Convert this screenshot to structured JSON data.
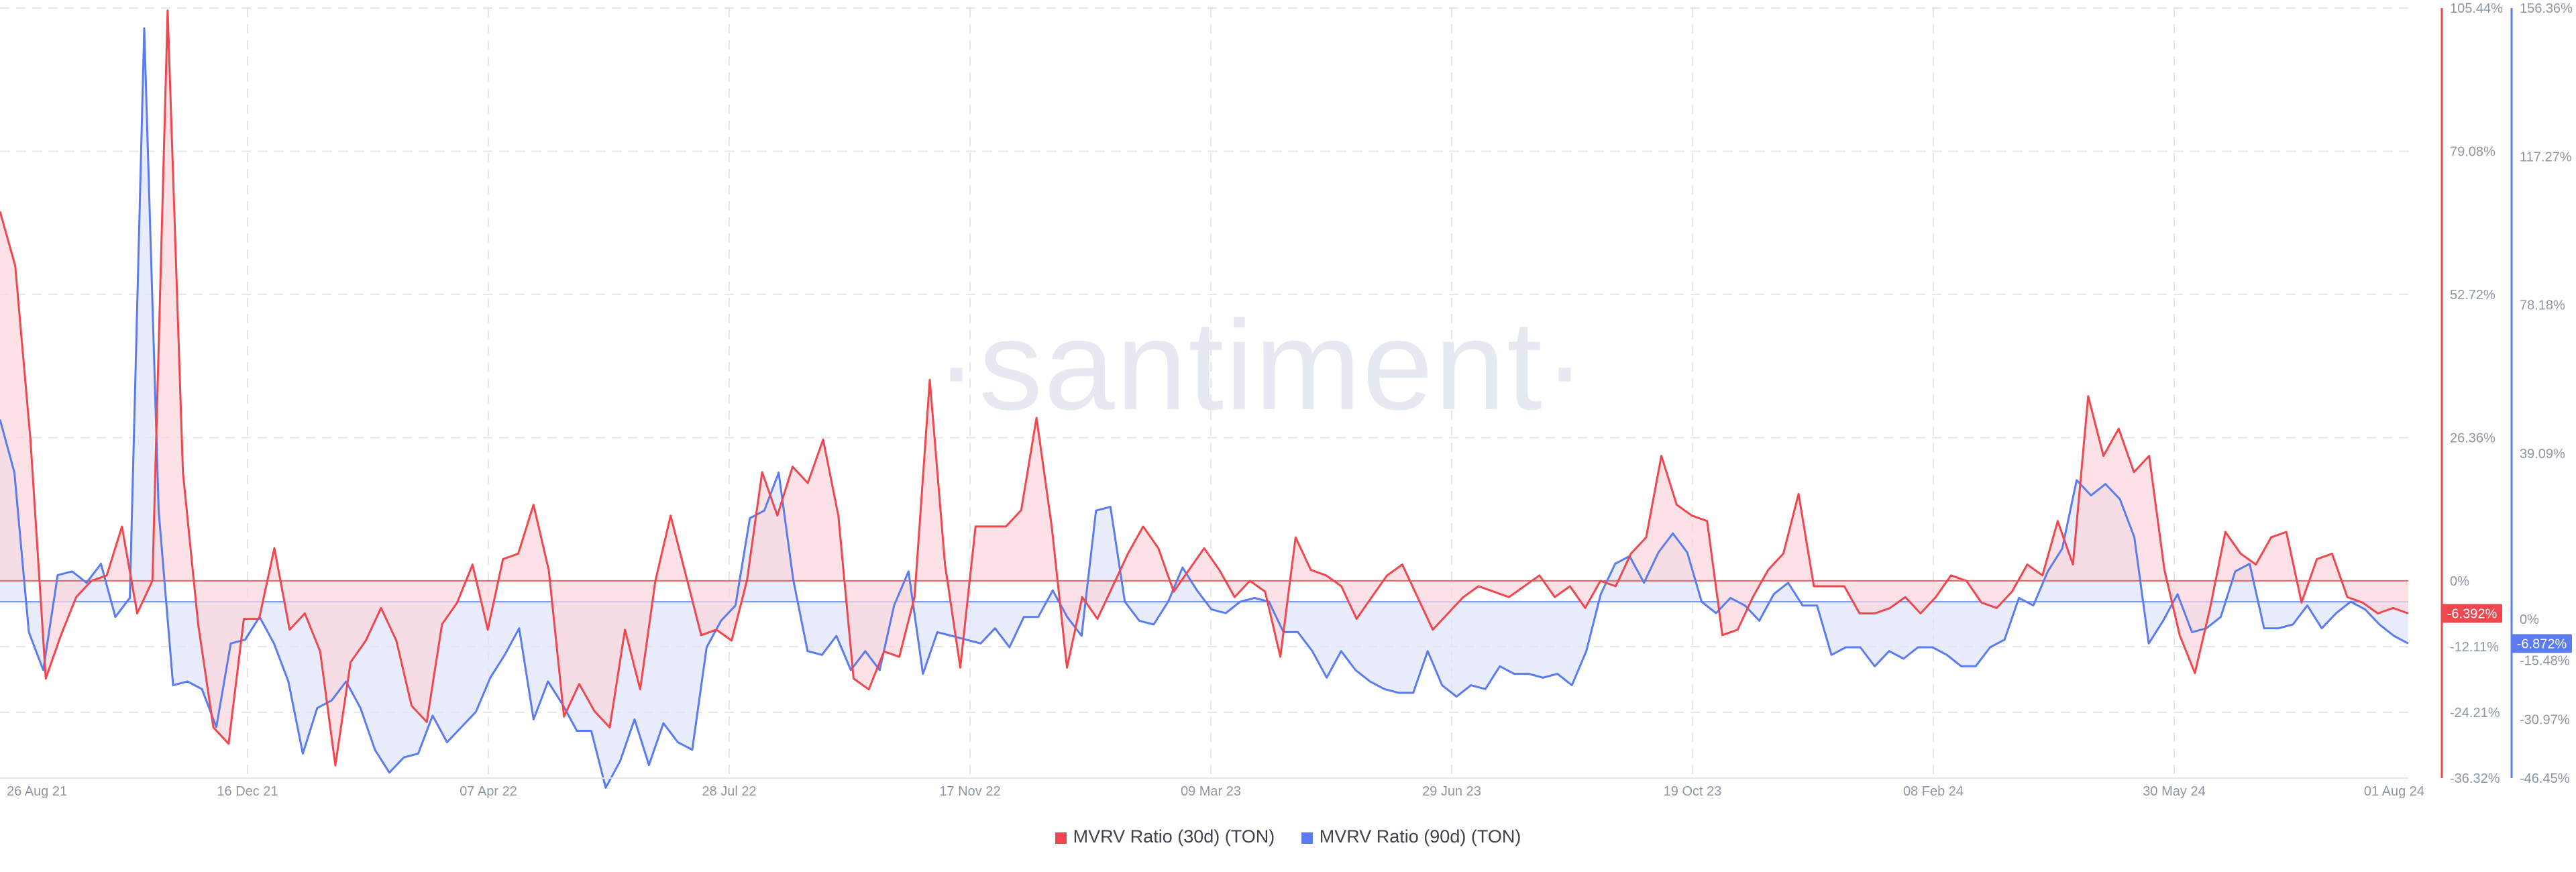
{
  "watermark": "·santiment·",
  "colors": {
    "series30": "#f0474e",
    "series90": "#5a7cf0",
    "fill30": "#fbd7dc",
    "fill90": "#dfe5fb"
  },
  "chart_data": {
    "type": "area",
    "x_ticks": [
      "26 Aug 21",
      "16 Dec 21",
      "07 Apr 22",
      "28 Jul 22",
      "17 Nov 22",
      "09 Mar 23",
      "29 Jun 23",
      "19 Oct 23",
      "08 Feb 24",
      "30 May 24",
      "01 Aug 24"
    ],
    "y_axes": [
      {
        "series": "MVRV Ratio (30d) (TON)",
        "ticks": [
          "105.44%",
          "79.08%",
          "52.72%",
          "26.36%",
          "0%",
          "-12.11%",
          "-24.21%",
          "-36.32%"
        ],
        "range": [
          -36.32,
          105.44
        ],
        "current": "-6.392%"
      },
      {
        "series": "MVRV Ratio (90d) (TON)",
        "ticks": [
          "156.36%",
          "117.27%",
          "78.18%",
          "39.09%",
          "0%",
          "-15.48%",
          "-30.97%",
          "-46.45%"
        ],
        "range": [
          -46.45,
          156.36
        ],
        "current": "-6.872%"
      }
    ],
    "series": [
      {
        "name": "MVRV Ratio (30d) (TON)",
        "axis": "right-1",
        "values": [
          68,
          58,
          26,
          -18,
          -10,
          -3,
          0,
          1,
          10,
          -6,
          0,
          105,
          20,
          -8,
          -27,
          -30,
          -7,
          -7,
          6,
          -9,
          -6,
          -13,
          -34,
          -15,
          -11,
          -5,
          -11,
          -23,
          -26,
          -8,
          -4,
          3,
          -9,
          4,
          5,
          14,
          2,
          -25,
          -19,
          -24,
          -27,
          -9,
          -20,
          0,
          12,
          1,
          -10,
          -9,
          -11,
          0,
          20,
          12,
          21,
          18,
          26,
          12,
          -18,
          -20,
          -13,
          -14,
          -3,
          37,
          3,
          -16,
          10,
          10,
          10,
          13,
          30,
          10,
          -16,
          -3,
          -7,
          -1,
          5,
          10,
          6,
          -2,
          2,
          6,
          2,
          -3,
          0,
          -2,
          -14,
          8,
          2,
          1,
          -1,
          -7,
          -3,
          1,
          3,
          -3,
          -9,
          -6,
          -3,
          -1,
          -2,
          -3,
          -1,
          1,
          -3,
          -1,
          -5,
          0,
          -1,
          5,
          8,
          23,
          14,
          12,
          11,
          -10,
          -9,
          -3,
          2,
          5,
          16,
          -1,
          -1,
          -1,
          -6,
          -6,
          -5,
          -3,
          -6,
          -3,
          1,
          0,
          -4,
          -5,
          -2,
          3,
          1,
          11,
          3,
          34,
          23,
          28,
          20,
          23,
          2,
          -10,
          -17,
          -5,
          9,
          5,
          3,
          8,
          9,
          -4,
          4,
          5,
          -3,
          -4,
          -6,
          -5,
          -6
        ],
        "values_note": "values in %; array on one line"
      },
      {
        "name": "MVRV Ratio (90d) (TON)",
        "axis": "right-2",
        "values": [
          48,
          34,
          -8,
          -18,
          7,
          8,
          5,
          10,
          -4,
          1,
          151,
          24,
          -22,
          -21,
          -23,
          -33,
          -11,
          -10,
          -4,
          -11,
          -21,
          -40,
          -28,
          -26,
          -21,
          -28,
          -39,
          -45,
          -41,
          -40,
          -30,
          -37,
          -33,
          -29,
          -20,
          -14,
          -7,
          -31,
          -21,
          -27,
          -34,
          -34,
          -49,
          -42,
          -31,
          -43,
          -32,
          -37,
          -39,
          -12,
          -5,
          -1,
          22,
          24,
          34,
          6,
          -13,
          -14,
          -9,
          -18,
          -13,
          -18,
          -1,
          8,
          -19,
          -8,
          -9,
          -10,
          -11,
          -7,
          -12,
          -4,
          -4,
          3,
          -4,
          -9,
          24,
          25,
          0,
          -5,
          -6,
          0,
          9,
          3,
          -2,
          -3,
          0,
          1,
          0,
          -8,
          -8,
          -13,
          -20,
          -13,
          -18,
          -21,
          -23,
          -24,
          -24,
          -13,
          -22,
          -25,
          -22,
          -23,
          -17,
          -19,
          -19,
          -20,
          -19,
          -22,
          -13,
          2,
          10,
          12,
          5,
          13,
          18,
          13,
          0,
          -3,
          1,
          -1,
          -5,
          2,
          5,
          -1,
          -1,
          -14,
          -12,
          -12,
          -17,
          -13,
          -15,
          -12,
          -12,
          -14,
          -17,
          -17,
          -12,
          -10,
          1,
          -1,
          8,
          14,
          32,
          28,
          31,
          27,
          17,
          -11,
          -5,
          2,
          -8,
          -7,
          -4,
          8,
          10,
          -7,
          -7,
          -6,
          -1,
          -7,
          -3,
          0,
          -2,
          -6,
          -9,
          -11
        ]
      }
    ],
    "legend": [
      "MVRV Ratio (30d) (TON)",
      "MVRV Ratio (90d) (TON)"
    ],
    "legend_placement": "bottom-center"
  },
  "legend": {
    "item1": "MVRV Ratio (30d) (TON)",
    "item2": "MVRV Ratio (90d) (TON)"
  }
}
